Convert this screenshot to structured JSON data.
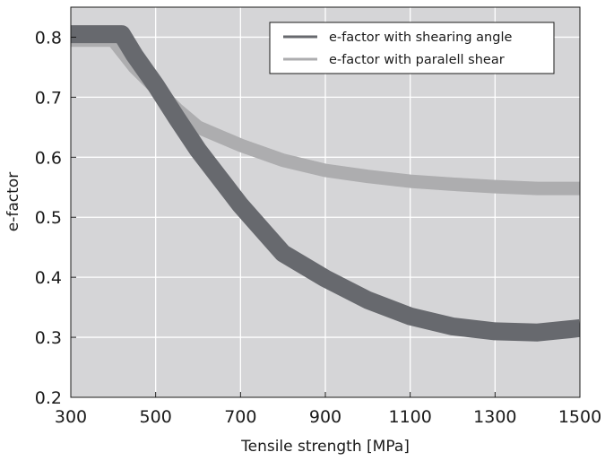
{
  "chart_data": {
    "type": "line",
    "xlabel": "Tensile strength [MPa]",
    "ylabel": "e-factor",
    "xlim": [
      300,
      1500
    ],
    "ylim": [
      0.2,
      0.85
    ],
    "x_ticks": [
      300,
      500,
      700,
      900,
      1100,
      1300,
      1500
    ],
    "x_tick_labels": [
      "300",
      "500",
      "700",
      "900",
      "1100",
      "1300",
      "1500"
    ],
    "y_ticks": [
      0.2,
      0.3,
      0.4,
      0.5,
      0.6,
      0.7,
      0.8
    ],
    "y_tick_labels": [
      "0.2",
      "0.3",
      "0.4",
      "0.5",
      "0.6",
      "0.7",
      "0.8"
    ],
    "grid": true,
    "legend_position": "top-right",
    "background_color": "#d5d5d7",
    "series": [
      {
        "name": "e-factor with parallel shear",
        "label": "e-factor with paralell shear",
        "color": "#adadaf",
        "x": [
          300,
          400,
          450,
          500,
          550,
          600,
          700,
          800,
          900,
          1000,
          1100,
          1200,
          1300,
          1400,
          1500
        ],
        "y": [
          0.795,
          0.795,
          0.75,
          0.715,
          0.68,
          0.65,
          0.62,
          0.595,
          0.578,
          0.568,
          0.56,
          0.555,
          0.551,
          0.548,
          0.548
        ]
      },
      {
        "name": "e-factor with shearing angle",
        "label": "e-factor with shearing angle",
        "color": "#67696e",
        "x": [
          300,
          420,
          450,
          500,
          550,
          600,
          700,
          800,
          900,
          1000,
          1100,
          1200,
          1300,
          1400,
          1500
        ],
        "y": [
          0.805,
          0.805,
          0.77,
          0.72,
          0.665,
          0.612,
          0.52,
          0.44,
          0.398,
          0.362,
          0.335,
          0.318,
          0.31,
          0.308,
          0.315
        ]
      }
    ]
  }
}
